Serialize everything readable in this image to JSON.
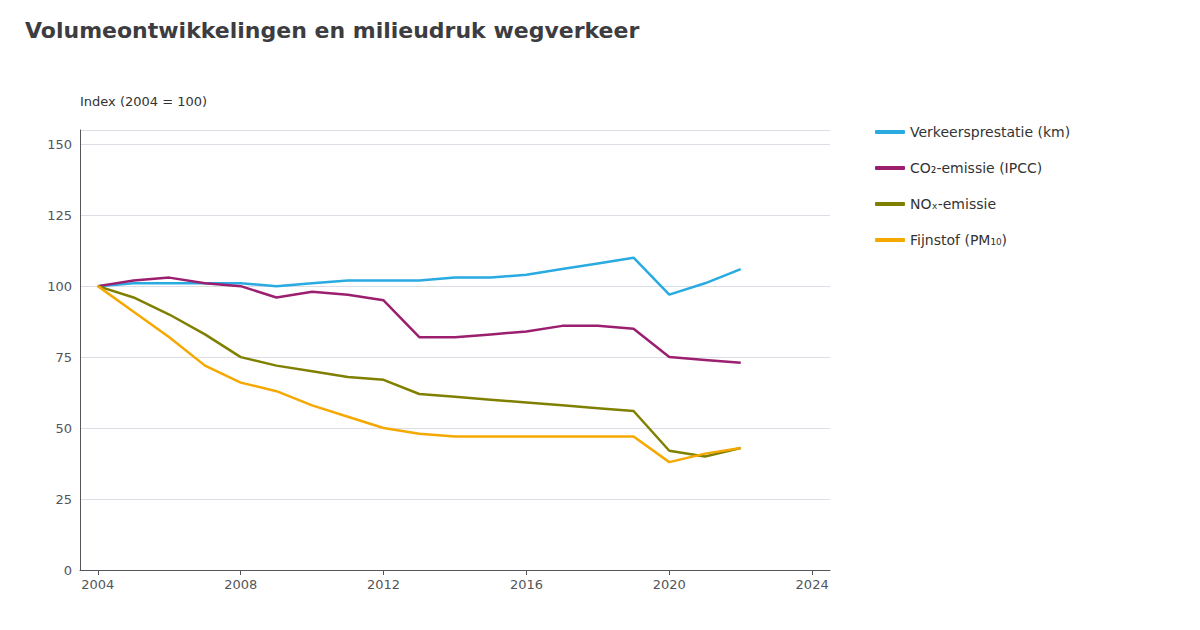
{
  "chart_data": {
    "type": "line",
    "title": "Volumeontwikkelingen en milieudruk wegverkeer",
    "ylabel": "Index (2004 = 100)",
    "x": [
      2004,
      2005,
      2006,
      2007,
      2008,
      2009,
      2010,
      2011,
      2012,
      2013,
      2014,
      2015,
      2016,
      2017,
      2018,
      2019,
      2020,
      2021,
      2022
    ],
    "series": [
      {
        "name": "Verkeersprestatie (km)",
        "color": "#29abe2",
        "values": [
          100,
          101,
          101,
          101,
          101,
          100,
          101,
          102,
          102,
          102,
          103,
          103,
          104,
          106,
          108,
          110,
          97,
          101,
          106
        ]
      },
      {
        "name": "CO₂-emissie (IPCC)",
        "color": "#9b1f6e",
        "values": [
          100,
          102,
          103,
          101,
          100,
          96,
          98,
          97,
          95,
          82,
          82,
          83,
          84,
          86,
          86,
          85,
          75,
          74,
          73
        ]
      },
      {
        "name": "NOₓ-emissie",
        "color": "#808000",
        "values": [
          100,
          96,
          90,
          83,
          75,
          72,
          70,
          68,
          67,
          62,
          61,
          60,
          59,
          58,
          57,
          56,
          42,
          40,
          43
        ]
      },
      {
        "name": "Fijnstof (PM₁₀)",
        "color": "#f5a800",
        "values": [
          100,
          91,
          82,
          72,
          66,
          63,
          58,
          54,
          50,
          48,
          47,
          47,
          47,
          47,
          47,
          47,
          38,
          41,
          43
        ]
      }
    ],
    "xlim": [
      2003.5,
      2024.5
    ],
    "ylim": [
      0,
      155
    ],
    "xticks": [
      2004,
      2008,
      2012,
      2016,
      2020,
      2024
    ],
    "yticks": [
      0,
      25,
      50,
      75,
      100,
      125,
      150
    ],
    "grid": true,
    "legend": "right"
  }
}
